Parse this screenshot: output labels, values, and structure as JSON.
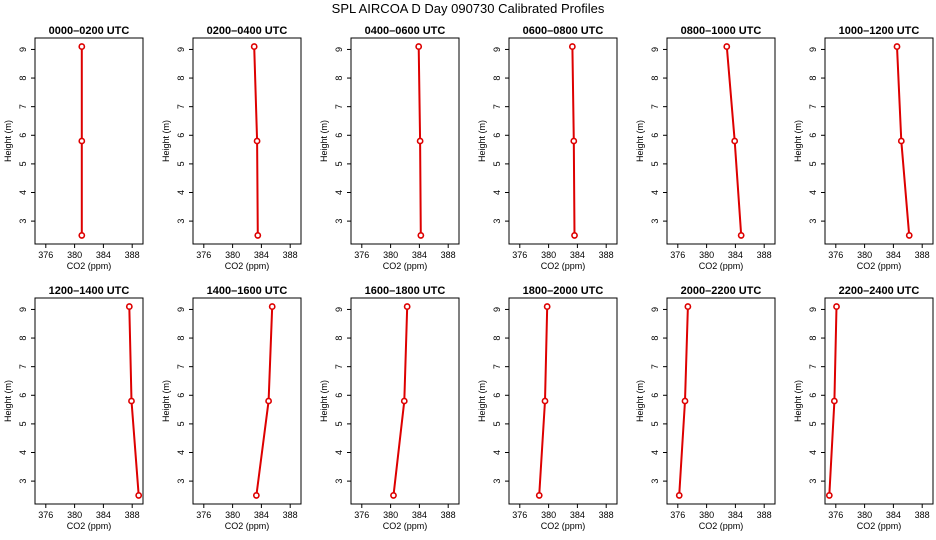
{
  "figure_title": "SPL AIRCOA D  Day 090730  Calibrated Profiles",
  "colors": {
    "series": "#dd0000",
    "axis": "#000000",
    "background": "#ffffff"
  },
  "chart_data": [
    {
      "type": "line",
      "title": "0000–0200 UTC",
      "xlabel": "CO2 (ppm)",
      "ylabel": "Height (m)",
      "xlim": [
        374.5,
        389.5
      ],
      "ylim": [
        2.2,
        9.4
      ],
      "xticks": [
        376,
        380,
        384,
        388
      ],
      "yticks": [
        3,
        4,
        5,
        6,
        7,
        8,
        9
      ],
      "x_tick_labels": [
        "376",
        "380",
        "384",
        "388"
      ],
      "y_tick_labels": [
        "3",
        "4",
        "5",
        "6",
        "7",
        "8",
        "9"
      ],
      "points": [
        {
          "x": 381.0,
          "y": 9.1
        },
        {
          "x": 381.0,
          "y": 5.8
        },
        {
          "x": 381.0,
          "y": 2.5
        }
      ]
    },
    {
      "type": "line",
      "title": "0200–0400 UTC",
      "xlabel": "CO2 (ppm)",
      "ylabel": "Height (m)",
      "xlim": [
        374.5,
        389.5
      ],
      "ylim": [
        2.2,
        9.4
      ],
      "xticks": [
        376,
        380,
        384,
        388
      ],
      "yticks": [
        3,
        4,
        5,
        6,
        7,
        8,
        9
      ],
      "x_tick_labels": [
        "376",
        "380",
        "384",
        "388"
      ],
      "y_tick_labels": [
        "3",
        "4",
        "5",
        "6",
        "7",
        "8",
        "9"
      ],
      "points": [
        {
          "x": 383.0,
          "y": 9.1
        },
        {
          "x": 383.4,
          "y": 5.8
        },
        {
          "x": 383.5,
          "y": 2.5
        }
      ]
    },
    {
      "type": "line",
      "title": "0400–0600 UTC",
      "xlabel": "CO2 (ppm)",
      "ylabel": "Height (m)",
      "xlim": [
        374.5,
        389.5
      ],
      "ylim": [
        2.2,
        9.4
      ],
      "xticks": [
        376,
        380,
        384,
        388
      ],
      "yticks": [
        3,
        4,
        5,
        6,
        7,
        8,
        9
      ],
      "x_tick_labels": [
        "376",
        "380",
        "384",
        "388"
      ],
      "y_tick_labels": [
        "3",
        "4",
        "5",
        "6",
        "7",
        "8",
        "9"
      ],
      "points": [
        {
          "x": 383.9,
          "y": 9.1
        },
        {
          "x": 384.1,
          "y": 5.8
        },
        {
          "x": 384.2,
          "y": 2.5
        }
      ]
    },
    {
      "type": "line",
      "title": "0600–0800 UTC",
      "xlabel": "CO2 (ppm)",
      "ylabel": "Height (m)",
      "xlim": [
        374.5,
        389.5
      ],
      "ylim": [
        2.2,
        9.4
      ],
      "xticks": [
        376,
        380,
        384,
        388
      ],
      "yticks": [
        3,
        4,
        5,
        6,
        7,
        8,
        9
      ],
      "x_tick_labels": [
        "376",
        "380",
        "384",
        "388"
      ],
      "y_tick_labels": [
        "3",
        "4",
        "5",
        "6",
        "7",
        "8",
        "9"
      ],
      "points": [
        {
          "x": 383.3,
          "y": 9.1
        },
        {
          "x": 383.5,
          "y": 5.8
        },
        {
          "x": 383.6,
          "y": 2.5
        }
      ]
    },
    {
      "type": "line",
      "title": "0800–1000 UTC",
      "xlabel": "CO2 (ppm)",
      "ylabel": "Height (m)",
      "xlim": [
        374.5,
        389.5
      ],
      "ylim": [
        2.2,
        9.4
      ],
      "xticks": [
        376,
        380,
        384,
        388
      ],
      "yticks": [
        3,
        4,
        5,
        6,
        7,
        8,
        9
      ],
      "x_tick_labels": [
        "376",
        "380",
        "384",
        "388"
      ],
      "y_tick_labels": [
        "3",
        "4",
        "5",
        "6",
        "7",
        "8",
        "9"
      ],
      "points": [
        {
          "x": 382.8,
          "y": 9.1
        },
        {
          "x": 383.9,
          "y": 5.8
        },
        {
          "x": 384.8,
          "y": 2.5
        }
      ]
    },
    {
      "type": "line",
      "title": "1000–1200 UTC",
      "xlabel": "CO2 (ppm)",
      "ylabel": "Height (m)",
      "xlim": [
        374.5,
        389.5
      ],
      "ylim": [
        2.2,
        9.4
      ],
      "xticks": [
        376,
        380,
        384,
        388
      ],
      "yticks": [
        3,
        4,
        5,
        6,
        7,
        8,
        9
      ],
      "x_tick_labels": [
        "376",
        "380",
        "384",
        "388"
      ],
      "y_tick_labels": [
        "3",
        "4",
        "5",
        "6",
        "7",
        "8",
        "9"
      ],
      "points": [
        {
          "x": 384.5,
          "y": 9.1
        },
        {
          "x": 385.1,
          "y": 5.8
        },
        {
          "x": 386.2,
          "y": 2.5
        }
      ]
    },
    {
      "type": "line",
      "title": "1200–1400 UTC",
      "xlabel": "CO2 (ppm)",
      "ylabel": "Height (m)",
      "xlim": [
        374.5,
        389.5
      ],
      "ylim": [
        2.2,
        9.4
      ],
      "xticks": [
        376,
        380,
        384,
        388
      ],
      "yticks": [
        3,
        4,
        5,
        6,
        7,
        8,
        9
      ],
      "x_tick_labels": [
        "376",
        "380",
        "384",
        "388"
      ],
      "y_tick_labels": [
        "3",
        "4",
        "5",
        "6",
        "7",
        "8",
        "9"
      ],
      "points": [
        {
          "x": 387.6,
          "y": 9.1
        },
        {
          "x": 387.9,
          "y": 5.8
        },
        {
          "x": 388.9,
          "y": 2.5
        }
      ]
    },
    {
      "type": "line",
      "title": "1400–1600 UTC",
      "xlabel": "CO2 (ppm)",
      "ylabel": "Height (m)",
      "xlim": [
        374.5,
        389.5
      ],
      "ylim": [
        2.2,
        9.4
      ],
      "xticks": [
        376,
        380,
        384,
        388
      ],
      "yticks": [
        3,
        4,
        5,
        6,
        7,
        8,
        9
      ],
      "x_tick_labels": [
        "376",
        "380",
        "384",
        "388"
      ],
      "y_tick_labels": [
        "3",
        "4",
        "5",
        "6",
        "7",
        "8",
        "9"
      ],
      "points": [
        {
          "x": 385.5,
          "y": 9.1
        },
        {
          "x": 385.0,
          "y": 5.8
        },
        {
          "x": 383.3,
          "y": 2.5
        }
      ]
    },
    {
      "type": "line",
      "title": "1600–1800 UTC",
      "xlabel": "CO2 (ppm)",
      "ylabel": "Height (m)",
      "xlim": [
        374.5,
        389.5
      ],
      "ylim": [
        2.2,
        9.4
      ],
      "xticks": [
        376,
        380,
        384,
        388
      ],
      "yticks": [
        3,
        4,
        5,
        6,
        7,
        8,
        9
      ],
      "x_tick_labels": [
        "376",
        "380",
        "384",
        "388"
      ],
      "y_tick_labels": [
        "3",
        "4",
        "5",
        "6",
        "7",
        "8",
        "9"
      ],
      "points": [
        {
          "x": 382.3,
          "y": 9.1
        },
        {
          "x": 381.9,
          "y": 5.8
        },
        {
          "x": 380.4,
          "y": 2.5
        }
      ]
    },
    {
      "type": "line",
      "title": "1800–2000 UTC",
      "xlabel": "CO2 (ppm)",
      "ylabel": "Height (m)",
      "xlim": [
        374.5,
        389.5
      ],
      "ylim": [
        2.2,
        9.4
      ],
      "xticks": [
        376,
        380,
        384,
        388
      ],
      "yticks": [
        3,
        4,
        5,
        6,
        7,
        8,
        9
      ],
      "x_tick_labels": [
        "376",
        "380",
        "384",
        "388"
      ],
      "y_tick_labels": [
        "3",
        "4",
        "5",
        "6",
        "7",
        "8",
        "9"
      ],
      "points": [
        {
          "x": 379.8,
          "y": 9.1
        },
        {
          "x": 379.5,
          "y": 5.8
        },
        {
          "x": 378.7,
          "y": 2.5
        }
      ]
    },
    {
      "type": "line",
      "title": "2000–2200 UTC",
      "xlabel": "CO2 (ppm)",
      "ylabel": "Height (m)",
      "xlim": [
        374.5,
        389.5
      ],
      "ylim": [
        2.2,
        9.4
      ],
      "xticks": [
        376,
        380,
        384,
        388
      ],
      "yticks": [
        3,
        4,
        5,
        6,
        7,
        8,
        9
      ],
      "x_tick_labels": [
        "376",
        "380",
        "384",
        "388"
      ],
      "y_tick_labels": [
        "3",
        "4",
        "5",
        "6",
        "7",
        "8",
        "9"
      ],
      "points": [
        {
          "x": 377.4,
          "y": 9.1
        },
        {
          "x": 377.0,
          "y": 5.8
        },
        {
          "x": 376.2,
          "y": 2.5
        }
      ]
    },
    {
      "type": "line",
      "title": "2200–2400 UTC",
      "xlabel": "CO2 (ppm)",
      "ylabel": "Height (m)",
      "xlim": [
        374.5,
        389.5
      ],
      "ylim": [
        2.2,
        9.4
      ],
      "xticks": [
        376,
        380,
        384,
        388
      ],
      "yticks": [
        3,
        4,
        5,
        6,
        7,
        8,
        9
      ],
      "x_tick_labels": [
        "376",
        "380",
        "384",
        "388"
      ],
      "y_tick_labels": [
        "3",
        "4",
        "5",
        "6",
        "7",
        "8",
        "9"
      ],
      "points": [
        {
          "x": 376.1,
          "y": 9.1
        },
        {
          "x": 375.8,
          "y": 5.8
        },
        {
          "x": 375.1,
          "y": 2.5
        }
      ]
    }
  ]
}
